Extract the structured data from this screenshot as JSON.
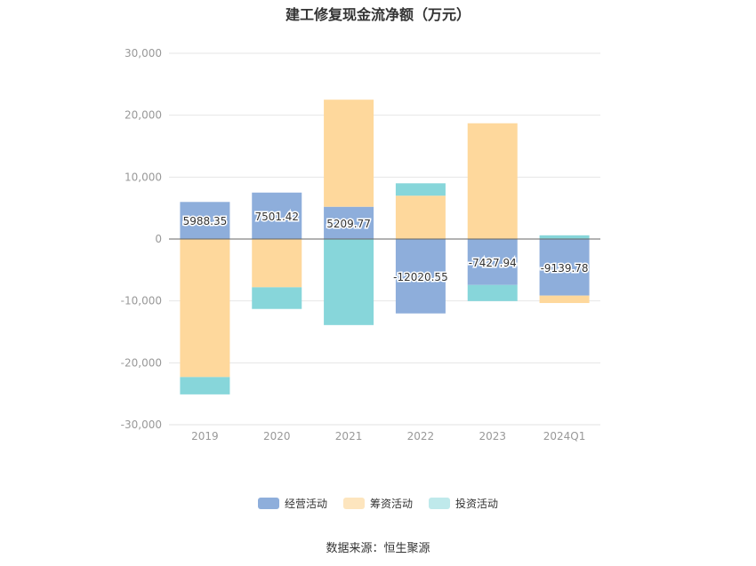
{
  "title": "建工修复现金流净额（万元）",
  "source": "数据来源：恒生聚源",
  "chart_data": {
    "type": "bar",
    "stacked": true,
    "categories": [
      "2019",
      "2020",
      "2021",
      "2022",
      "2023",
      "2024Q1"
    ],
    "ylim": [
      -30000,
      30000
    ],
    "yticks": [
      30000,
      20000,
      10000,
      0,
      -10000,
      -20000,
      -30000
    ],
    "ytick_labels": [
      "30,000",
      "20,000",
      "10,000",
      "0",
      "-10,000",
      "-20,000",
      "-30,000"
    ],
    "grid": true,
    "legend_position": "bottom",
    "series": [
      {
        "name": "经营活动",
        "color": "#8eaedb",
        "values": [
          5988.35,
          7501.42,
          5209.77,
          -12020.55,
          -7427.94,
          -9139.78
        ],
        "labels": [
          "5988.35",
          "7501.42",
          "5209.77",
          "-12020.55",
          "-7427.94",
          "-9139.78"
        ]
      },
      {
        "name": "筹资活动",
        "color": "#fed89c",
        "values": [
          -22300,
          -7800,
          17300,
          7000,
          18700,
          -1200
        ]
      },
      {
        "name": "投资活动",
        "color": "#87d6da",
        "values": [
          -2800,
          -3500,
          -13900,
          2000,
          -2600,
          600
        ]
      }
    ]
  }
}
